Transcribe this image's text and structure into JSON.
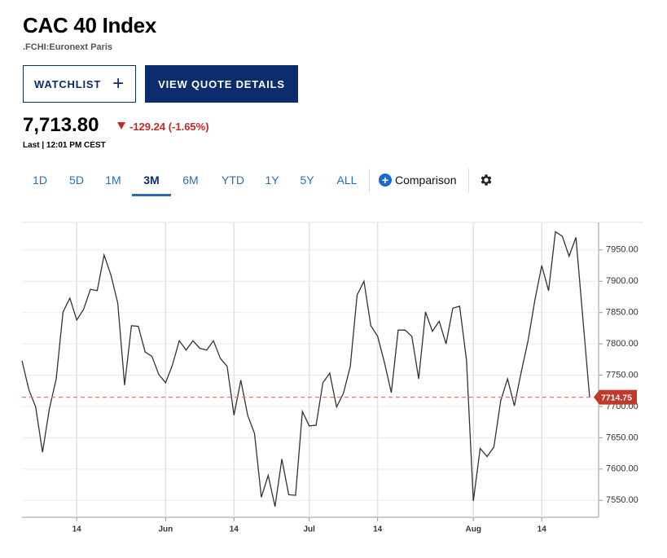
{
  "header": {
    "title": "CAC 40 Index",
    "subtitle": ".FCHI:Euronext Paris"
  },
  "buttons": {
    "watchlist": "WATCHLIST",
    "quote": "VIEW QUOTE DETAILS"
  },
  "quote": {
    "price": "7,713.80",
    "change": "-129.24 (-1.65%)",
    "last": "Last | 12:01 PM CEST"
  },
  "tabs": [
    "1D",
    "5D",
    "1M",
    "3M",
    "6M",
    "YTD",
    "1Y",
    "5Y",
    "ALL"
  ],
  "selected_tab": "3M",
  "comparison": "Comparison",
  "chart_data": {
    "type": "line",
    "categories": [
      null,
      null,
      null,
      null,
      null,
      null,
      null,
      null,
      "14",
      null,
      null,
      null,
      null,
      null,
      null,
      null,
      null,
      null,
      null,
      null,
      null,
      "Jun",
      null,
      null,
      null,
      null,
      null,
      null,
      null,
      null,
      null,
      "14",
      null,
      null,
      null,
      null,
      null,
      null,
      null,
      null,
      null,
      null,
      "Jul",
      null,
      null,
      null,
      null,
      null,
      null,
      null,
      null,
      null,
      "14",
      null,
      null,
      null,
      null,
      null,
      null,
      null,
      null,
      null,
      null,
      null,
      null,
      null,
      "Aug",
      null,
      null,
      null,
      null,
      null,
      null,
      null,
      null,
      null,
      "14",
      null,
      null,
      null,
      null,
      null,
      null,
      null
    ],
    "series": [
      {
        "name": "CAC 40",
        "color": "#333333",
        "values": [
          7773,
          7727,
          7699,
          7627,
          7696,
          7744,
          7851,
          7873,
          7838,
          7855,
          7887,
          7885,
          7942,
          7910,
          7865,
          7734,
          7829,
          7828,
          7787,
          7780,
          7751,
          7738,
          7766,
          7805,
          7790,
          7805,
          7793,
          7790,
          7805,
          7777,
          7764,
          7686,
          7742,
          7686,
          7657,
          7555,
          7590,
          7540,
          7616,
          7559,
          7558,
          7692,
          7669,
          7670,
          7738,
          7753,
          7699,
          7721,
          7764,
          7878,
          7900,
          7829,
          7812,
          7770,
          7722,
          7822,
          7822,
          7812,
          7744,
          7851,
          7820,
          7836,
          7800,
          7857,
          7860,
          7774,
          7549,
          7633,
          7620,
          7635,
          7709,
          7744,
          7701,
          7755,
          7805,
          7870,
          7925,
          7885,
          7979,
          7972,
          7940,
          7970,
          7842,
          7714.75
        ]
      }
    ],
    "last_value": 7714.75,
    "ylim": [
      7523,
      7994
    ],
    "yticks": [
      {
        "value": 7550,
        "label": "7550.00"
      },
      {
        "value": 7600,
        "label": "7600.00"
      },
      {
        "value": 7650,
        "label": "7650.00"
      },
      {
        "value": 7700,
        "label": "7700.00"
      },
      {
        "value": 7750,
        "label": "7750.00"
      },
      {
        "value": 7800,
        "label": "7800.00"
      },
      {
        "value": 7850,
        "label": "7850.00"
      },
      {
        "value": 7900,
        "label": "7900.00"
      },
      {
        "value": 7950,
        "label": "7950.00"
      }
    ],
    "grid": true
  }
}
